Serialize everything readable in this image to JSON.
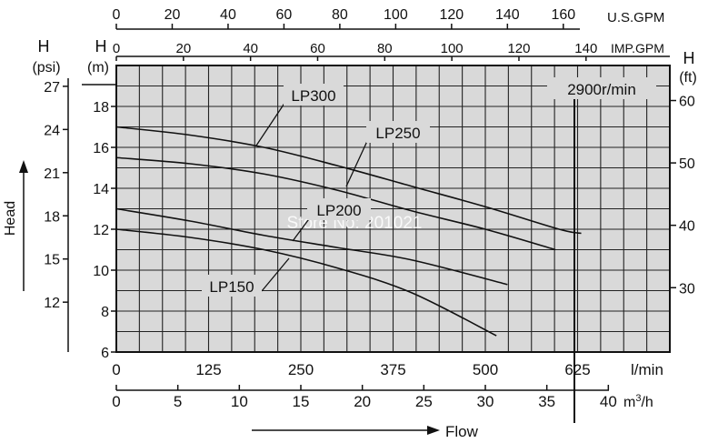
{
  "chart_data": {
    "type": "line",
    "title": "",
    "annotation": "2900r/min",
    "watermark": "Store No: 201021",
    "x_primary": {
      "unit": "l/min",
      "range": [
        0,
        750
      ],
      "ticks": [
        "0",
        "125",
        "250",
        "375",
        "500",
        "625"
      ],
      "tick_values": [
        0,
        125,
        250,
        375,
        500,
        625
      ]
    },
    "x_m3h": {
      "unit_base": "m",
      "unit_sup": "3",
      "unit_tail": "/h",
      "ticks": [
        "0",
        "5",
        "10",
        "15",
        "20",
        "25",
        "30",
        "35",
        "40"
      ],
      "tick_values": [
        0,
        5,
        10,
        15,
        20,
        25,
        30,
        35,
        40
      ]
    },
    "x_usgpm": {
      "unit": "U.S.GPM",
      "ticks": [
        "0",
        "20",
        "40",
        "60",
        "80",
        "100",
        "120",
        "140",
        "160"
      ],
      "tick_values": [
        0,
        20,
        40,
        60,
        80,
        100,
        120,
        140,
        160
      ]
    },
    "x_impgpm": {
      "unit": "IMP.GPM",
      "ticks": [
        "0",
        "20",
        "40",
        "60",
        "80",
        "100",
        "120",
        "140"
      ],
      "tick_values": [
        0,
        20,
        40,
        60,
        80,
        100,
        120,
        140
      ]
    },
    "y_m": {
      "label_top": "H",
      "label_unit": "(m)",
      "range": [
        6,
        20
      ],
      "ticks": [
        "6",
        "8",
        "10",
        "12",
        "14",
        "16",
        "18"
      ],
      "tick_values": [
        6,
        8,
        10,
        12,
        14,
        16,
        18
      ]
    },
    "y_psi": {
      "label_top": "H",
      "label_unit": "(psi)",
      "ticks": [
        "12",
        "15",
        "18",
        "21",
        "24",
        "27"
      ],
      "tick_values": [
        12,
        15,
        18,
        21,
        24,
        27
      ]
    },
    "y_ft": {
      "label_top": "H",
      "label_unit": "(ft)",
      "ticks": [
        "30",
        "40",
        "50",
        "60"
      ],
      "tick_values": [
        30,
        40,
        50,
        60
      ]
    },
    "head_label": "Head",
    "flow_label": "Flow",
    "series": [
      {
        "name": "LP300",
        "x": [
          0,
          100,
          200,
          300,
          400,
          500,
          600,
          630
        ],
        "y": [
          17.0,
          16.6,
          16.0,
          15.1,
          14.1,
          13.1,
          12.0,
          11.8
        ],
        "label_at": [
          25.5,
          6.1
        ]
      },
      {
        "name": "LP250",
        "x": [
          0,
          100,
          200,
          300,
          400,
          500,
          595
        ],
        "y": [
          15.5,
          15.2,
          14.7,
          13.9,
          12.9,
          12.0,
          11.0
        ],
        "label_at": [
          340,
          16.9
        ]
      },
      {
        "name": "LP200",
        "x": [
          0,
          100,
          200,
          300,
          400,
          530
        ],
        "y": [
          13.0,
          12.4,
          11.7,
          11.1,
          10.5,
          9.3
        ],
        "label_at": [
          265,
          12.8
        ]
      },
      {
        "name": "LP150",
        "x": [
          0,
          100,
          200,
          300,
          400,
          515
        ],
        "y": [
          12.0,
          11.6,
          11.0,
          10.1,
          8.9,
          6.8
        ],
        "label_at": [
          115,
          9.5
        ]
      }
    ]
  }
}
